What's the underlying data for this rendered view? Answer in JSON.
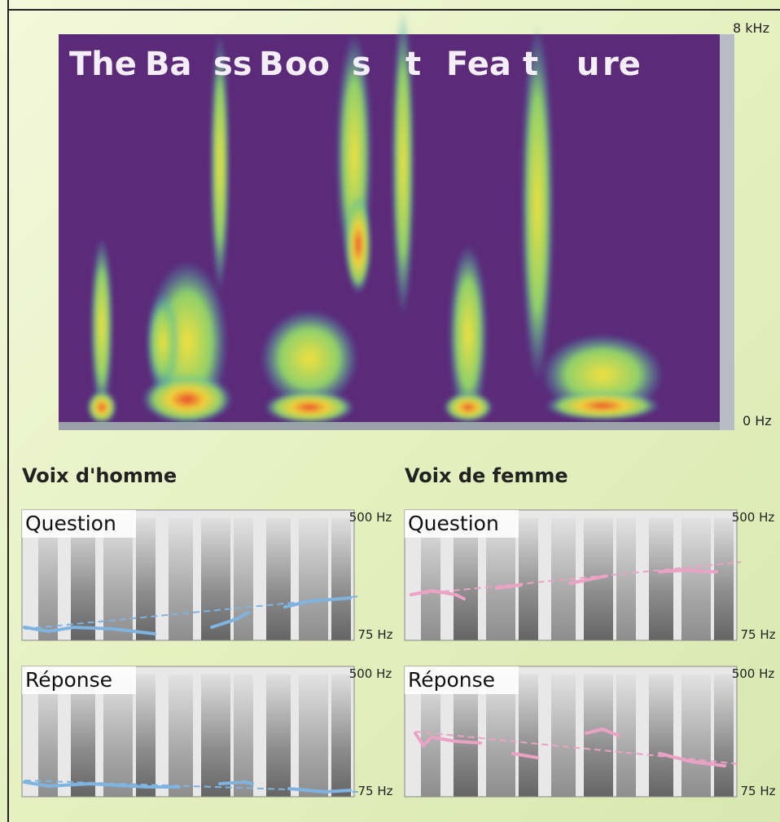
{
  "spectrogram": {
    "title_segments": [
      "The",
      "Ba",
      "ss",
      "B",
      "oo",
      "s",
      "t",
      "Fea",
      "t",
      "u",
      "re"
    ],
    "top_label": "8 kHz",
    "bottom_label": "0 Hz"
  },
  "sections": [
    {
      "heading": "Voix d'homme",
      "panels": [
        {
          "label": "Question",
          "top_label": "500 Hz",
          "bottom_label": "75 Hz"
        },
        {
          "label": "Réponse",
          "top_label": "500 Hz",
          "bottom_label": "75 Hz"
        }
      ]
    },
    {
      "heading": "Voix de femme",
      "panels": [
        {
          "label": "Question",
          "top_label": "500 Hz",
          "bottom_label": "75 Hz"
        },
        {
          "label": "Réponse",
          "top_label": "500 Hz",
          "bottom_label": "75 Hz"
        }
      ]
    }
  ]
}
